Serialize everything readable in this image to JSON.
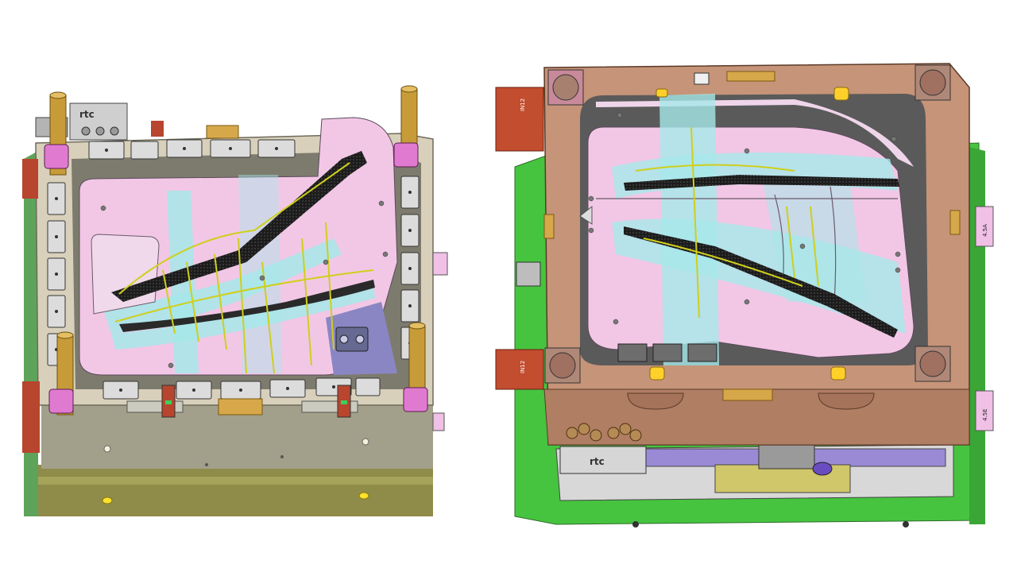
{
  "left_mold": {
    "logo_text": "rtc",
    "colors": {
      "plate": "#d9d2c0",
      "base": "#8c8a5e",
      "cavity": "#f3c8e6",
      "water": "#a6e8ea",
      "pins": "#c79b38",
      "block": "#b6402a"
    }
  },
  "right_mold": {
    "logo_text": "rtc",
    "block_labels": [
      "IN12",
      "IN12"
    ],
    "side_labels": [
      "4.5A",
      "4.5E"
    ],
    "colors": {
      "plate": "#c69478",
      "base": "#44c13e",
      "cavity": "#f3c8e6",
      "water": "#a6e8ea",
      "block": "#c24d2f"
    }
  }
}
